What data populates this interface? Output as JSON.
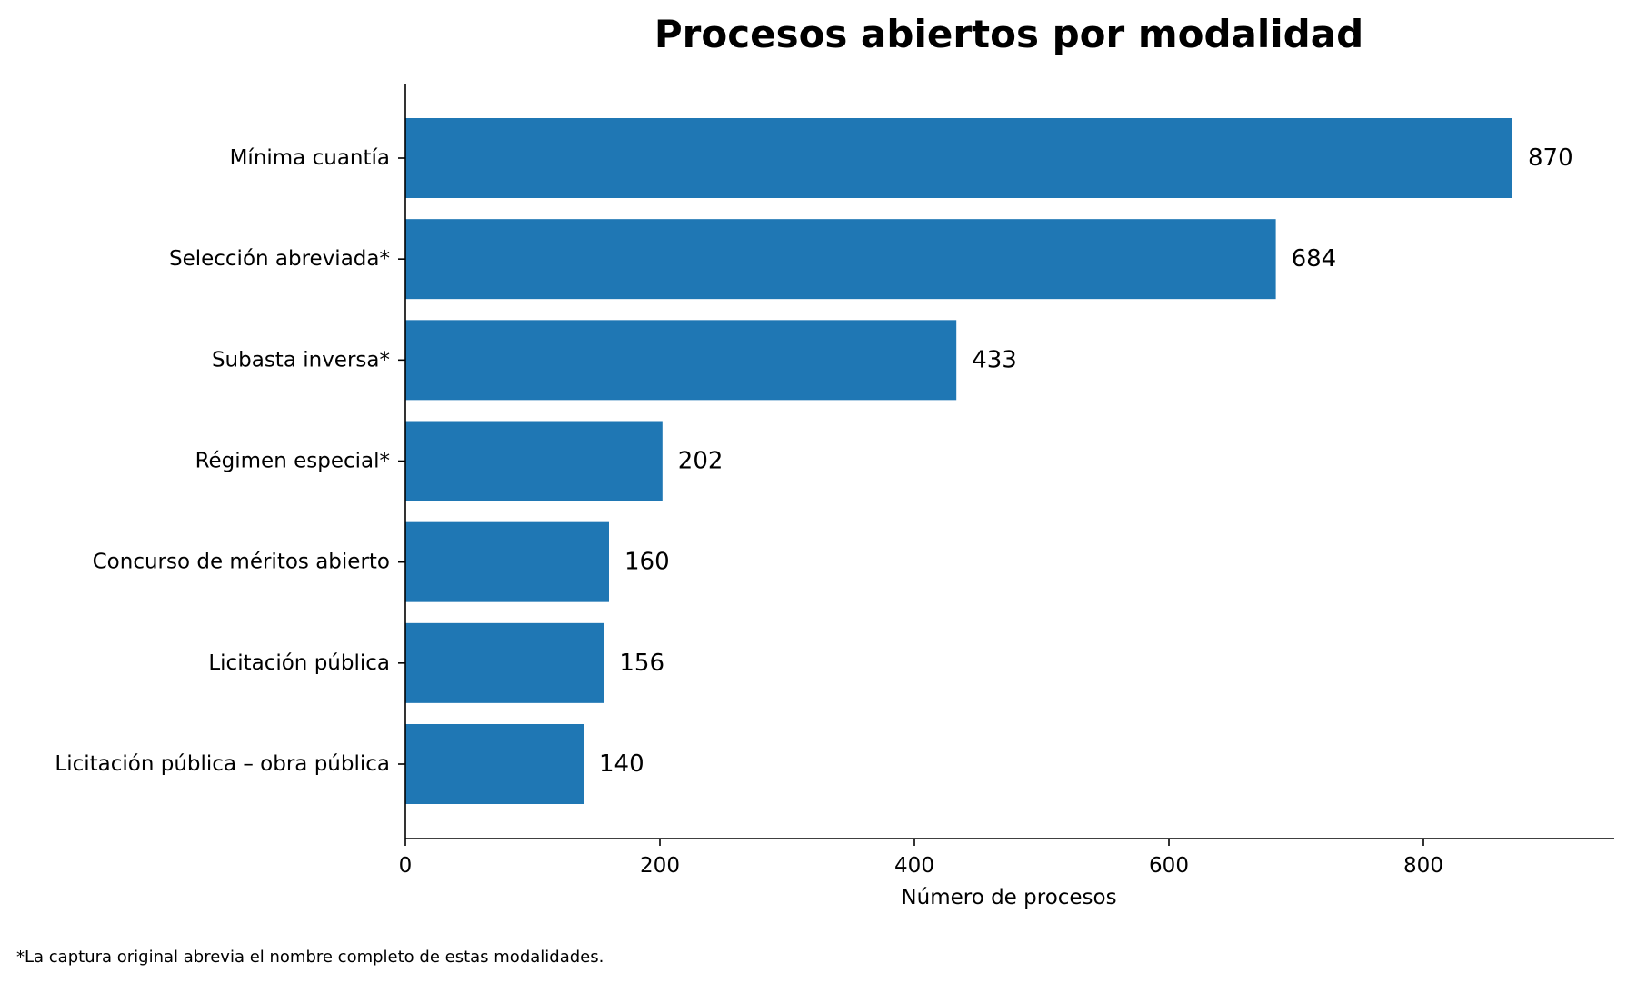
{
  "chart_data": {
    "type": "bar",
    "orientation": "horizontal",
    "title": "Procesos abiertos por modalidad",
    "xlabel": "Número de procesos",
    "ylabel": "",
    "categories": [
      "Mínima cuantía",
      "Selección abreviada*",
      "Subasta inversa*",
      "Régimen especial*",
      "Concurso de méritos abierto",
      "Licitación pública",
      "Licitación pública – obra pública"
    ],
    "values": [
      870,
      684,
      433,
      202,
      160,
      156,
      140
    ],
    "data_labels": [
      "870",
      "684",
      "433",
      "202",
      "160",
      "156",
      "140"
    ],
    "xlim": [
      0,
      950
    ],
    "x_ticks": [
      0,
      200,
      400,
      600,
      800
    ],
    "x_tick_labels": [
      "0",
      "200",
      "400",
      "600",
      "800"
    ],
    "bar_color": "#1f77b4",
    "grid": false
  },
  "footnote": "*La captura original abrevia el nombre completo de estas modalidades."
}
